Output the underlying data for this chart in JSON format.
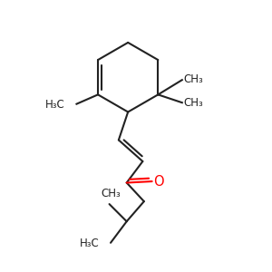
{
  "background_color": "#ffffff",
  "bond_color": "#222222",
  "oxygen_color": "#ff0000",
  "line_width": 1.5,
  "font_size": 8.5,
  "xlim": [
    0,
    10
  ],
  "ylim": [
    0,
    10
  ]
}
